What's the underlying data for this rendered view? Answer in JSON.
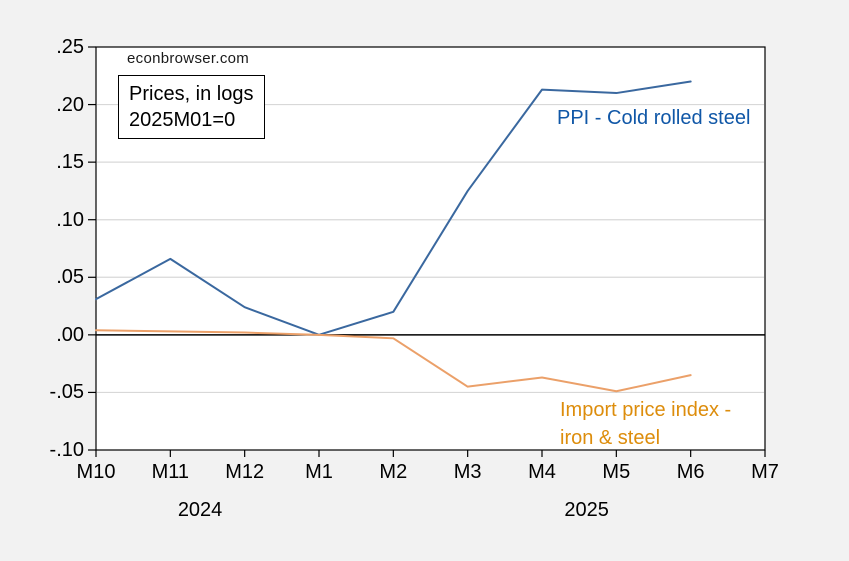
{
  "page": {
    "background_color": "#f2f2f2",
    "plot_background_color": "#ffffff",
    "gridline_color": "#d8d8d8",
    "axis_color": "#000000"
  },
  "watermark": "econbrowser.com",
  "annotation_box": {
    "line1": "Prices, in logs",
    "line2": "2025M01=0"
  },
  "chart_data": {
    "type": "line",
    "title": "",
    "xlabel": "",
    "ylabel": "",
    "categories": [
      "M10",
      "M11",
      "M12",
      "M1",
      "M2",
      "M3",
      "M4",
      "M5",
      "M6",
      "M7"
    ],
    "x_axis_year_labels": [
      "2024",
      "2025"
    ],
    "ylim": [
      -0.1,
      0.25
    ],
    "yticks": [
      {
        "label": ".25",
        "value": 0.25
      },
      {
        "label": ".20",
        "value": 0.2
      },
      {
        "label": ".15",
        "value": 0.15
      },
      {
        "label": ".10",
        "value": 0.1
      },
      {
        "label": ".05",
        "value": 0.05
      },
      {
        "label": ".00",
        "value": 0.0
      },
      {
        "label": "-.05",
        "value": -0.05
      },
      {
        "label": "-.10",
        "value": -0.1
      }
    ],
    "grid": "horizontal",
    "zero_line": true,
    "legend_position": "inline-labels",
    "series": [
      {
        "name": "PPI - Cold rolled steel",
        "label_lines": [
          "PPI - Cold rolled steel"
        ],
        "line_color": "#3a689f",
        "label_color": "#1057a7",
        "values": [
          0.031,
          0.066,
          0.024,
          0.0,
          0.02,
          0.125,
          0.213,
          0.21,
          0.22,
          null
        ]
      },
      {
        "name": "Import price index - iron & steel",
        "label_lines": [
          "Import price index -",
          "iron & steel"
        ],
        "line_color": "#eba069",
        "label_color": "#dd8d0c",
        "values": [
          0.004,
          0.003,
          0.002,
          0.0,
          -0.003,
          -0.045,
          -0.037,
          -0.049,
          -0.035,
          null
        ]
      }
    ]
  }
}
